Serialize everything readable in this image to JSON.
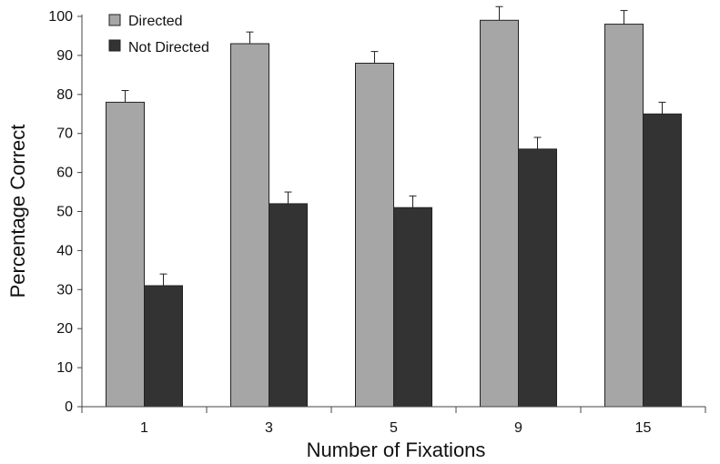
{
  "chart_data": {
    "type": "bar",
    "title": "",
    "xlabel": "Number of Fixations",
    "ylabel": "Percentage Correct",
    "categories": [
      "1",
      "3",
      "5",
      "9",
      "15"
    ],
    "ylim": [
      0,
      100
    ],
    "yticks": [
      0,
      10,
      20,
      30,
      40,
      50,
      60,
      70,
      80,
      90,
      100
    ],
    "grid": false,
    "legend_position": "top-left",
    "series": [
      {
        "name": "Directed",
        "color": "#a6a6a6",
        "values": [
          78,
          93,
          88,
          99,
          98
        ],
        "error_plus": [
          3,
          3,
          3,
          3.5,
          3.5
        ]
      },
      {
        "name": "Not Directed",
        "color": "#333333",
        "values": [
          31,
          52,
          51,
          66,
          75
        ],
        "error_plus": [
          3,
          3,
          3,
          3,
          3
        ]
      }
    ]
  }
}
